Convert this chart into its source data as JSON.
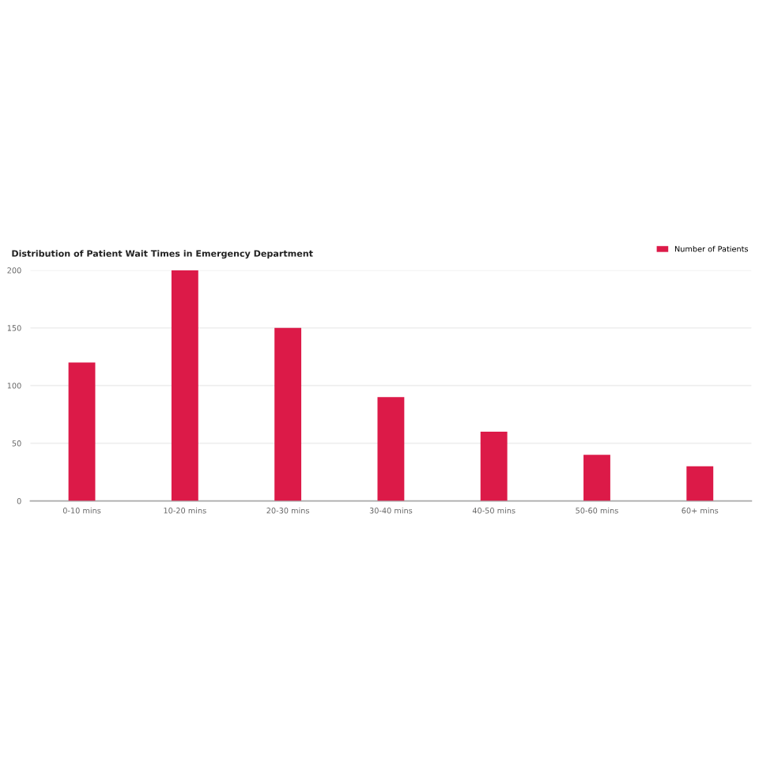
{
  "chart_data": {
    "type": "bar",
    "title": "Distribution of Patient Wait Times in Emergency Department",
    "categories": [
      "0-10 mins",
      "10-20 mins",
      "20-30 mins",
      "30-40 mins",
      "40-50 mins",
      "50-60 mins",
      "60+ mins"
    ],
    "series": [
      {
        "name": "Number of Patients",
        "color": "#dc1a48",
        "values": [
          120,
          200,
          150,
          90,
          60,
          40,
          30
        ]
      }
    ],
    "ylim": [
      0,
      200
    ],
    "yticks": [
      0,
      50,
      100,
      150,
      200
    ],
    "grid": "y",
    "legend": "top right"
  }
}
